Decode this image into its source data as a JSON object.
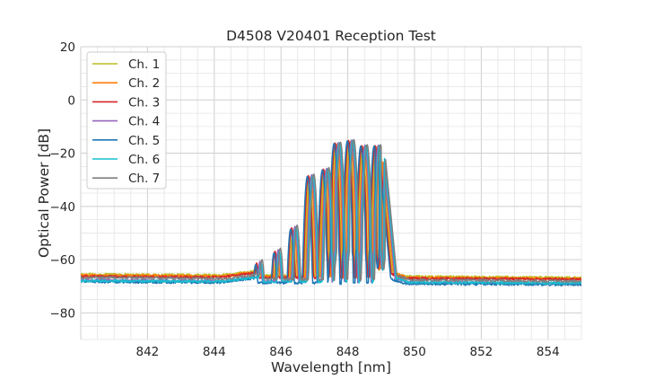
{
  "chart_data": {
    "type": "line",
    "title": "D4508 V20401 Reception Test",
    "xlabel": "Wavelength [nm]",
    "ylabel": "Optical Power [dB]",
    "xlim": [
      840.0,
      855.0
    ],
    "ylim": [
      -90,
      20
    ],
    "xticks": [
      842,
      844,
      846,
      848,
      850,
      852,
      854
    ],
    "xtick_labels": [
      "842",
      "844",
      "846",
      "848",
      "850",
      "852",
      "854"
    ],
    "yticks": [
      20,
      0,
      -20,
      -40,
      -60,
      -80
    ],
    "ytick_labels": [
      "20",
      "0",
      "−20",
      "−40",
      "−60",
      "−80"
    ],
    "grid": true,
    "minor_grid": true,
    "legend_position": "top-left",
    "series": [
      {
        "name": "Ch. 1",
        "color": "#bcbd22",
        "shift": 0.0,
        "floor_left": -65.5,
        "floor_right": -66.8,
        "peak_scale": 1.03
      },
      {
        "name": "Ch. 2",
        "color": "#ff7f0e",
        "shift": 0.04,
        "floor_left": -65.9,
        "floor_right": -67.2,
        "peak_scale": 1.0
      },
      {
        "name": "Ch. 3",
        "color": "#d62728",
        "shift": -0.03,
        "floor_left": -66.3,
        "floor_right": -67.4,
        "peak_scale": 0.98
      },
      {
        "name": "Ch. 4",
        "color": "#9467bd",
        "shift": 0.07,
        "floor_left": -67.6,
        "floor_right": -69.0,
        "peak_scale": 0.97
      },
      {
        "name": "Ch. 5",
        "color": "#1f77b4",
        "shift": -0.06,
        "floor_left": -68.3,
        "floor_right": -69.4,
        "peak_scale": 0.99
      },
      {
        "name": "Ch. 6",
        "color": "#17becf",
        "shift": 0.1,
        "floor_left": -67.9,
        "floor_right": -68.8,
        "peak_scale": 0.98
      },
      {
        "name": "Ch. 7",
        "color": "#7f7f7f",
        "shift": 0.13,
        "floor_left": -66.7,
        "floor_right": -68.1,
        "peak_scale": 0.96
      }
    ],
    "envelope_peaks": [
      {
        "x": 845.3,
        "y": -62.5
      },
      {
        "x": 845.85,
        "y": -58.0
      },
      {
        "x": 846.35,
        "y": -49.0
      },
      {
        "x": 846.85,
        "y": -29.0
      },
      {
        "x": 847.3,
        "y": -26.5
      },
      {
        "x": 847.65,
        "y": -16.5
      },
      {
        "x": 848.05,
        "y": -15.5
      },
      {
        "x": 848.45,
        "y": -17.5
      },
      {
        "x": 848.85,
        "y": -17.5
      },
      {
        "x": 849.05,
        "y": -22.0
      }
    ]
  }
}
